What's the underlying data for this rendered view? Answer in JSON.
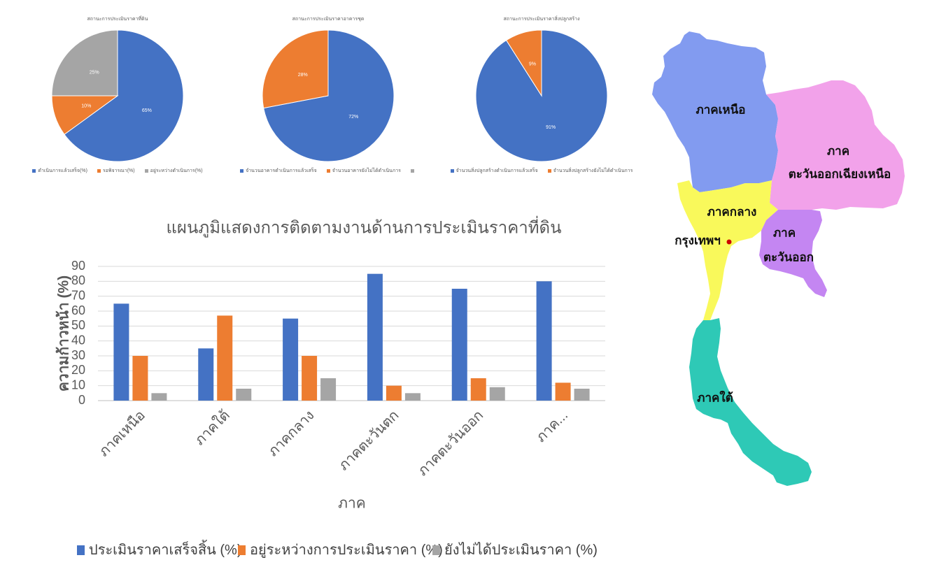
{
  "chart_data": [
    {
      "type": "pie",
      "title": "สถานะการประเมินราคาที่ดิน",
      "slices": [
        {
          "label": "ดำเนินการแล้วเสร็จ(%)",
          "value": 65,
          "data_label": "65%",
          "color": "#4472c4"
        },
        {
          "label": "รอพิจารณา(%)",
          "value": 10,
          "data_label": "10%",
          "color": "#ed7d31"
        },
        {
          "label": "อยู่ระหว่างดำเนินการ(%)",
          "value": 25,
          "data_label": "25%",
          "color": "#a5a5a5"
        }
      ],
      "legend": "bottom"
    },
    {
      "type": "pie",
      "title": "สถานะการประเมินราคาอาคารชุด",
      "slices": [
        {
          "label": "จำนวนอาคารดำเนินการแล้วเสร็จ",
          "value": 72,
          "data_label": "72%",
          "color": "#4472c4"
        },
        {
          "label": "จำนวนอาคารยังไม่ได้ดำเนินการ",
          "value": 28,
          "data_label": "28%",
          "color": "#ed7d31"
        },
        {
          "label": "",
          "value": 0,
          "color": "#a5a5a5"
        }
      ],
      "legend": "bottom"
    },
    {
      "type": "pie",
      "title": "สถานะการประเมินราคาสิ่งปลูกสร้าง",
      "slices": [
        {
          "label": "จำนวนสิ่งปลูกสร้างดำเนินการแล้วเสร็จ",
          "value": 91,
          "data_label": "91%",
          "color": "#4472c4"
        },
        {
          "label": "จำนวนสิ่งปลูกสร้างยังไม่ได้ดำเนินการ",
          "value": 9,
          "data_label": "9%",
          "color": "#ed7d31"
        }
      ],
      "legend": "bottom"
    },
    {
      "type": "bar",
      "title": "แผนภูมิแสดงการติดตามงานด้านการประเมินราคาที่ดิน",
      "categories": [
        "ภาคเหนือ",
        "ภาคใต้",
        "ภาคกลาง",
        "ภาคตะวันตก",
        "ภาคตะวันออก",
        "ภาค..."
      ],
      "series": [
        {
          "name": "ประเมินราคาเสร็จสิ้น (%)",
          "values": [
            65,
            35,
            55,
            85,
            75,
            80
          ],
          "color": "#4472c4"
        },
        {
          "name": "อยู่ระหว่างการประเมินราคา (%)",
          "values": [
            30,
            57,
            30,
            10,
            15,
            12
          ],
          "color": "#ed7d31"
        },
        {
          "name": "ยังไม่ได้ประเมินราคา (%)",
          "values": [
            5,
            8,
            15,
            5,
            9,
            8
          ],
          "color": "#a5a5a5"
        }
      ],
      "xlabel": "ภาค",
      "ylabel": "ความก้าวหน้า (%)",
      "ylim": [
        0,
        90
      ],
      "yticks": [
        0,
        10,
        20,
        30,
        40,
        50,
        60,
        70,
        80,
        90
      ],
      "grid": true,
      "legend": "bottom"
    }
  ],
  "map": {
    "labels": {
      "north": "ภาคเหนือ",
      "northeast_line1": "ภาค",
      "northeast_line2": "ตะวันออกเฉียงเหนือ",
      "central": "ภาคกลาง",
      "bangkok": "กรุงเทพฯ",
      "east_line1": "ภาค",
      "east_line2": "ตะวันออก",
      "south": "ภาคใต้"
    },
    "region_colors": {
      "north": "#829bf0",
      "northeast": "#f2a2ea",
      "central": "#f9f95b",
      "east": "#c486f2",
      "south": "#2ec9b6"
    },
    "bangkok_marker_color": "#cc0000"
  }
}
